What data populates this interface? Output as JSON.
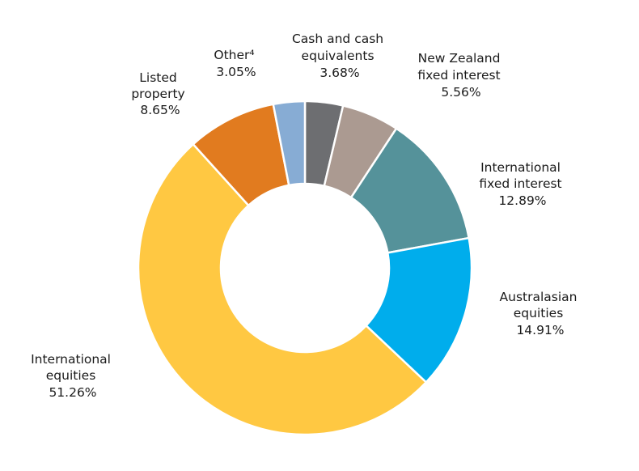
{
  "chart_data": {
    "type": "pie",
    "title": "",
    "style": "donut",
    "start_angle_deg": 0,
    "direction": "clockwise",
    "slices": [
      {
        "label_lines": [
          "Cash and cash",
          "equivalents"
        ],
        "value_text": "3.68%",
        "value": 3.68,
        "color": "#6d6e71"
      },
      {
        "label_lines": [
          "New Zealand",
          "fixed interest"
        ],
        "value_text": "5.56%",
        "value": 5.56,
        "color": "#ab9a91"
      },
      {
        "label_lines": [
          "International",
          "fixed interest"
        ],
        "value_text": "12.89%",
        "value": 12.89,
        "color": "#55929a"
      },
      {
        "label_lines": [
          "Australasian",
          "equities"
        ],
        "value_text": "14.91%",
        "value": 14.91,
        "color": "#00adec"
      },
      {
        "label_lines": [
          "International",
          "equities"
        ],
        "value_text": "51.26%",
        "value": 51.26,
        "color": "#ffc842"
      },
      {
        "label_lines": [
          "Listed",
          "property"
        ],
        "value_text": "8.65%",
        "value": 8.65,
        "color": "#e17b1f"
      },
      {
        "label_lines": [
          "Other⁴"
        ],
        "value_text": "3.05%",
        "value": 3.05,
        "color": "#87acd4"
      }
    ]
  }
}
